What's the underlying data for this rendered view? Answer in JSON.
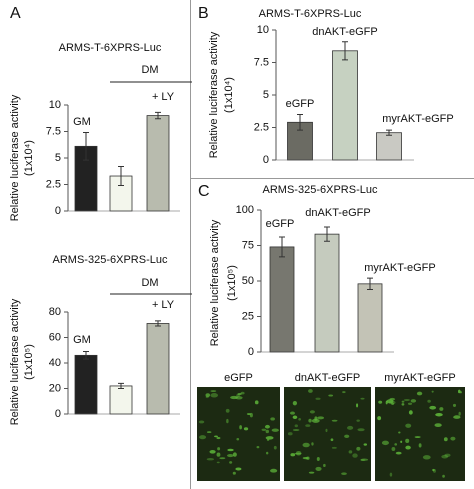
{
  "chart_data": [
    {
      "type": "bar",
      "panel_label": "A",
      "title": "ARMS-T-6XPRS-Luc",
      "ylabel": "Relative luciferase activity",
      "ylabel_unit": "(1x10⁴)",
      "categories": [
        "GM",
        null,
        "+ LY"
      ],
      "group_label": "DM",
      "values": [
        6.1,
        3.3,
        9.0
      ],
      "error": [
        1.3,
        0.9,
        0.3
      ],
      "colors": [
        "#222222",
        "#f3f6ec",
        "#b8bbae"
      ],
      "ylim": [
        0,
        10
      ],
      "yticks": [
        0,
        2.5,
        5,
        7.5,
        10
      ]
    },
    {
      "type": "bar",
      "title": "ARMS-325-6XPRS-Luc",
      "ylabel": "Relative luciferase activity",
      "ylabel_unit": "(1x10⁵)",
      "categories": [
        "GM",
        null,
        "+ LY"
      ],
      "group_label": "DM",
      "values": [
        46,
        22,
        71
      ],
      "error": [
        3,
        2,
        2
      ],
      "colors": [
        "#222222",
        "#f3f6ec",
        "#b8bbae"
      ],
      "ylim": [
        0,
        80
      ],
      "yticks": [
        0,
        20,
        40,
        60,
        80
      ]
    },
    {
      "type": "bar",
      "panel_label": "B",
      "title": "ARMS-T-6XPRS-Luc",
      "ylabel": "Relative luciferase activity",
      "ylabel_unit": "(1x10⁴)",
      "categories": [
        "eGFP",
        "dnAKT-eGFP",
        "myrAKT-eGFP"
      ],
      "values": [
        2.9,
        8.4,
        2.1
      ],
      "error": [
        0.6,
        0.7,
        0.2
      ],
      "colors": [
        "#6b6b63",
        "#c6d1c1",
        "#c9c9c3"
      ],
      "ylim": [
        0,
        10
      ],
      "yticks": [
        0,
        2.5,
        5,
        7.5,
        10
      ]
    },
    {
      "type": "bar",
      "panel_label": "C",
      "title": "ARMS-325-6XPRS-Luc",
      "ylabel": "Relative luciferase activity",
      "ylabel_unit": "(1x10⁵)",
      "categories": [
        "eGFP",
        "dnAKT-eGFP",
        "myrAKT-eGFP"
      ],
      "values": [
        74,
        83,
        48
      ],
      "error": [
        7,
        5,
        4
      ],
      "colors": [
        "#77776f",
        "#c5cbbe",
        "#c3c3b6"
      ],
      "ylim": [
        0,
        100
      ],
      "yticks": [
        0,
        25,
        50,
        75,
        100
      ]
    }
  ],
  "micrographs": [
    "eGFP",
    "dnAKT-eGFP",
    "myrAKT-eGFP"
  ]
}
